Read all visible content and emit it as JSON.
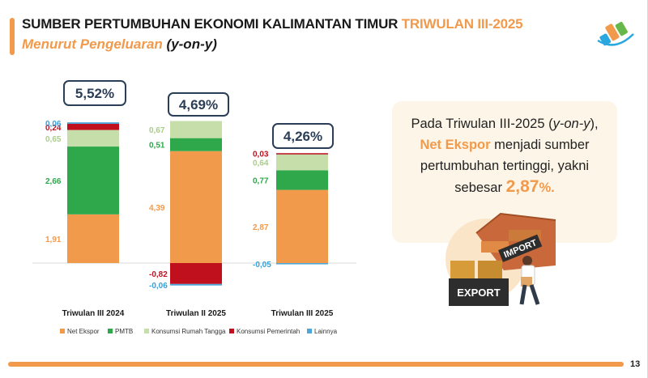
{
  "header": {
    "title_main": "SUMBER PERTUMBUHAN EKONOMI KALIMANTAN TIMUR ",
    "title_highlight": "TRIWULAN III-2025",
    "subtitle_orange": "Menurut Pengeluaran ",
    "subtitle_dark": "(y-on-y)"
  },
  "callout": {
    "line1_a": "Pada Triwulan III-2025 (",
    "line1_italic": "y-on-y",
    "line1_b": "),",
    "highlight": "Net Ekspor",
    "line2_rest": " menjadi sumber",
    "line3": "pertumbuhan tertinggi, yakni",
    "line4_a": "sebesar ",
    "value": "2,87",
    "percent": "%."
  },
  "illustration": {
    "import_label": "IMPORT",
    "export_label": "EXPORT"
  },
  "page_number": "13",
  "chart_data": {
    "type": "bar",
    "stacked": true,
    "categories": [
      "Triwulan III 2024",
      "Triwulan II 2025",
      "Triwulan III 2025"
    ],
    "totals": [
      "5,52%",
      "4,69%",
      "4,26%"
    ],
    "ylim": [
      -0.9,
      5.5
    ],
    "grid": false,
    "legend_position": "bottom-left",
    "series": [
      {
        "name": "Net Ekspor",
        "color": "#f29a4b",
        "values": [
          1.91,
          4.39,
          2.87
        ],
        "labels": [
          "1,91",
          "4,39",
          "2,87"
        ],
        "label_color": "#f29a4b"
      },
      {
        "name": "PMTB",
        "color": "#2ea84a",
        "values": [
          2.66,
          0.51,
          0.77
        ],
        "labels": [
          "2,66",
          "0,51",
          "0,77"
        ],
        "label_color": "#2ea84a"
      },
      {
        "name": "Konsumsi Rumah Tangga",
        "color": "#c5deaa",
        "values": [
          0.65,
          0.67,
          0.64
        ],
        "labels": [
          "0,65",
          "0,67",
          "0,64"
        ],
        "label_color": "#a9cc8a"
      },
      {
        "name": "Konsumsi Pemerintah",
        "color": "#c0101e",
        "values": [
          0.24,
          -0.82,
          0.03
        ],
        "labels": [
          "0,24",
          "-0,82",
          "0,03"
        ],
        "label_color": "#c0101e"
      },
      {
        "name": "Lainnya",
        "color": "#4da7d8",
        "values": [
          0.06,
          -0.06,
          -0.05
        ],
        "labels": [
          "0,06",
          "-0,06",
          "-0,05"
        ],
        "label_color": "#3aa0d8"
      }
    ]
  }
}
